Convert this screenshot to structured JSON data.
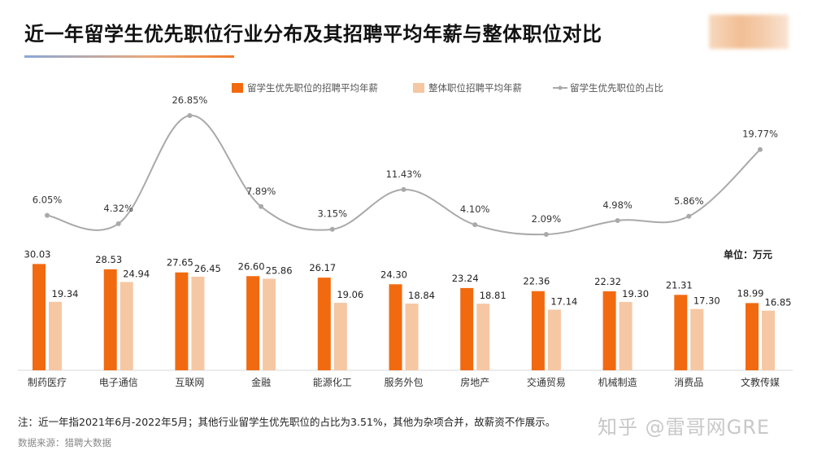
{
  "title": "近一年留学生优先职位行业分布及其招聘平均年薪与整体职位对比",
  "unit_label": "单位：万元",
  "note": "注：近一年指2021年6月-2022年5月；其他行业留学生优先职位的占比为3.51%，其他为杂项合并，故薪资不作展示。",
  "source": "数据来源：猎聘大数据",
  "watermark": "知乎 @雷哥网GRE",
  "colors": {
    "series_a": "#f26a10",
    "series_b": "#f6c7a3",
    "line": "#a9a9a9"
  },
  "chart_data": {
    "type": "bar",
    "categories": [
      "制药医疗",
      "电子通信",
      "互联网",
      "金融",
      "能源化工",
      "服务外包",
      "房地产",
      "交通贸易",
      "机械制造",
      "消费品",
      "文教传媒"
    ],
    "series": [
      {
        "name": "留学生优先职位的招聘平均年薪",
        "type": "bar",
        "values": [
          30.03,
          28.53,
          27.65,
          26.6,
          26.17,
          24.3,
          23.24,
          22.36,
          22.32,
          21.31,
          18.99
        ],
        "labels": [
          "30.03",
          "28.53",
          "27.65",
          "26.60",
          "26.17",
          "24.30",
          "23.24",
          "22.36",
          "22.32",
          "21.31",
          "18.99"
        ]
      },
      {
        "name": "整体职位招聘平均年薪",
        "type": "bar",
        "values": [
          19.34,
          24.94,
          26.45,
          25.86,
          19.06,
          18.84,
          18.81,
          17.14,
          19.3,
          17.3,
          16.85
        ],
        "labels": [
          "19.34",
          "24.94",
          "26.45",
          "25.86",
          "19.06",
          "18.84",
          "18.81",
          "17.14",
          "19.30",
          "17.30",
          "16.85"
        ]
      },
      {
        "name": "留学生优先职位的占比",
        "type": "line",
        "values": [
          6.05,
          4.32,
          26.85,
          7.89,
          3.15,
          11.43,
          4.1,
          2.09,
          4.98,
          5.86,
          19.77
        ],
        "labels": [
          "6.05%",
          "4.32%",
          "26.85%",
          "7.89%",
          "3.15%",
          "11.43%",
          "4.10%",
          "2.09%",
          "4.98%",
          "5.86%",
          "19.77%"
        ]
      }
    ],
    "legend_position": "top-center",
    "grid": false
  }
}
